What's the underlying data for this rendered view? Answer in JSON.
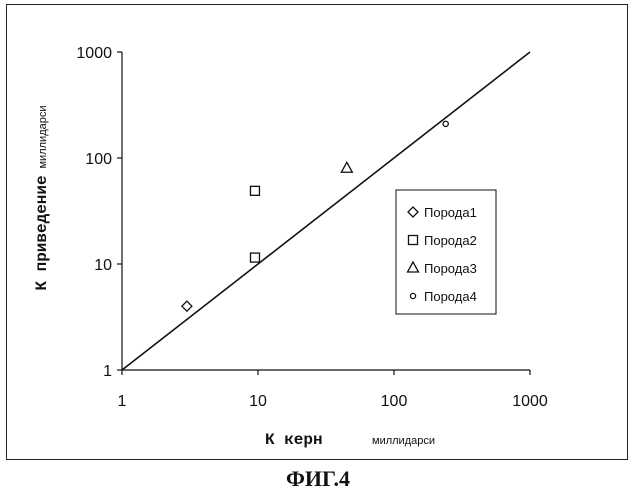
{
  "figure_caption": "ФИГ.4",
  "chart_data": {
    "type": "scatter",
    "xscale": "log",
    "yscale": "log",
    "xlim": [
      1,
      1000
    ],
    "ylim": [
      1,
      1000
    ],
    "xticks": [
      "1",
      "10",
      "100",
      "1000"
    ],
    "yticks": [
      "1",
      "10",
      "100",
      "1000"
    ],
    "xlabel": "К керн",
    "xlabel_unit": "миллидарси",
    "ylabel": "К приведение",
    "ylabel_unit": "миллидарси",
    "grid": false,
    "legend_position": "right",
    "reference_line": {
      "x": [
        1,
        1000
      ],
      "y": [
        1,
        1000
      ]
    },
    "series": [
      {
        "name": "Порода1",
        "marker": "diamond",
        "points": [
          {
            "x": 3,
            "y": 4
          }
        ]
      },
      {
        "name": "Порода2",
        "marker": "square",
        "points": [
          {
            "x": 9.5,
            "y": 49
          },
          {
            "x": 9.5,
            "y": 11.5
          }
        ]
      },
      {
        "name": "Порода3",
        "marker": "triangle",
        "points": [
          {
            "x": 45,
            "y": 80
          }
        ]
      },
      {
        "name": "Порода4",
        "marker": "circle",
        "points": [
          {
            "x": 240,
            "y": 210
          }
        ]
      }
    ]
  }
}
